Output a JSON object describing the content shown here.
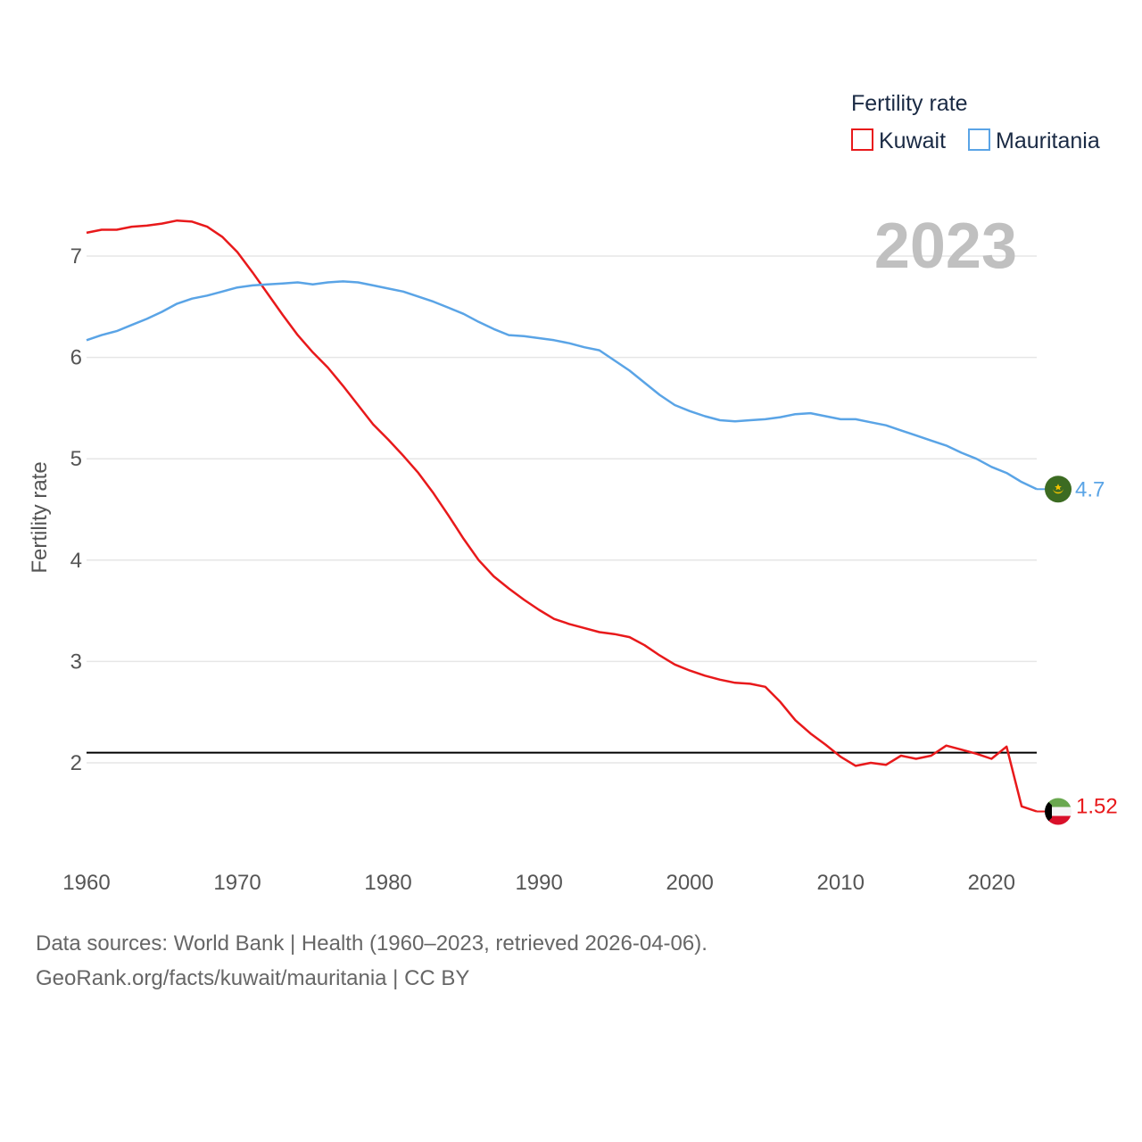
{
  "chart_data": {
    "type": "line",
    "legend_title": "Fertility rate",
    "ylabel": "Fertility rate",
    "year_label": "2023",
    "x_ticks": [
      1960,
      1970,
      1980,
      1990,
      2000,
      2010,
      2020
    ],
    "y_ticks": [
      2,
      3,
      4,
      5,
      6,
      7
    ],
    "xlim": [
      1960,
      2023
    ],
    "ylim": [
      1.0,
      7.6
    ],
    "reference_line": 2.1,
    "series": [
      {
        "name": "Kuwait",
        "color": "#e8191b",
        "end_label": "1.52",
        "flag_icon": "kuwait-flag-icon",
        "x": [
          1960,
          1961,
          1962,
          1963,
          1964,
          1965,
          1966,
          1967,
          1968,
          1969,
          1970,
          1971,
          1972,
          1973,
          1974,
          1975,
          1976,
          1977,
          1978,
          1979,
          1980,
          1981,
          1982,
          1983,
          1984,
          1985,
          1986,
          1987,
          1988,
          1989,
          1990,
          1991,
          1992,
          1993,
          1994,
          1995,
          1996,
          1997,
          1998,
          1999,
          2000,
          2001,
          2002,
          2003,
          2004,
          2005,
          2006,
          2007,
          2008,
          2009,
          2010,
          2011,
          2012,
          2013,
          2014,
          2015,
          2016,
          2017,
          2018,
          2019,
          2020,
          2021,
          2022,
          2023
        ],
        "values": [
          7.23,
          7.26,
          7.26,
          7.29,
          7.3,
          7.32,
          7.35,
          7.34,
          7.29,
          7.19,
          7.04,
          6.84,
          6.63,
          6.42,
          6.22,
          6.05,
          5.9,
          5.72,
          5.53,
          5.34,
          5.19,
          5.03,
          4.86,
          4.66,
          4.44,
          4.21,
          4.0,
          3.84,
          3.72,
          3.61,
          3.51,
          3.42,
          3.37,
          3.33,
          3.29,
          3.27,
          3.24,
          3.16,
          3.06,
          2.97,
          2.91,
          2.86,
          2.82,
          2.79,
          2.78,
          2.75,
          2.6,
          2.42,
          2.29,
          2.18,
          2.06,
          1.97,
          2.0,
          1.98,
          2.07,
          2.04,
          2.07,
          2.17,
          2.13,
          2.09,
          2.04,
          2.16,
          1.57,
          1.52
        ]
      },
      {
        "name": "Mauritania",
        "color": "#5aa4e6",
        "end_label": "4.7",
        "flag_icon": "mauritania-flag-icon",
        "x": [
          1960,
          1961,
          1962,
          1963,
          1964,
          1965,
          1966,
          1967,
          1968,
          1969,
          1970,
          1971,
          1972,
          1973,
          1974,
          1975,
          1976,
          1977,
          1978,
          1979,
          1980,
          1981,
          1982,
          1983,
          1984,
          1985,
          1986,
          1987,
          1988,
          1989,
          1990,
          1991,
          1992,
          1993,
          1994,
          1995,
          1996,
          1997,
          1998,
          1999,
          2000,
          2001,
          2002,
          2003,
          2004,
          2005,
          2006,
          2007,
          2008,
          2009,
          2010,
          2011,
          2012,
          2013,
          2014,
          2015,
          2016,
          2017,
          2018,
          2019,
          2020,
          2021,
          2022,
          2023
        ],
        "values": [
          6.17,
          6.22,
          6.26,
          6.32,
          6.38,
          6.45,
          6.53,
          6.58,
          6.61,
          6.65,
          6.69,
          6.71,
          6.72,
          6.73,
          6.74,
          6.72,
          6.74,
          6.75,
          6.74,
          6.71,
          6.68,
          6.65,
          6.6,
          6.55,
          6.49,
          6.43,
          6.35,
          6.28,
          6.22,
          6.21,
          6.19,
          6.17,
          6.14,
          6.1,
          6.07,
          5.97,
          5.87,
          5.75,
          5.63,
          5.53,
          5.47,
          5.42,
          5.38,
          5.37,
          5.38,
          5.39,
          5.41,
          5.44,
          5.45,
          5.42,
          5.39,
          5.39,
          5.36,
          5.33,
          5.28,
          5.23,
          5.18,
          5.13,
          5.06,
          5.0,
          4.92,
          4.86,
          4.77,
          4.7
        ]
      }
    ],
    "source_line": "Data sources: World Bank | Health (1960–2023, retrieved 2026-04-06).",
    "credit_line": "GeoRank.org/facts/kuwait/mauritania | CC BY"
  }
}
